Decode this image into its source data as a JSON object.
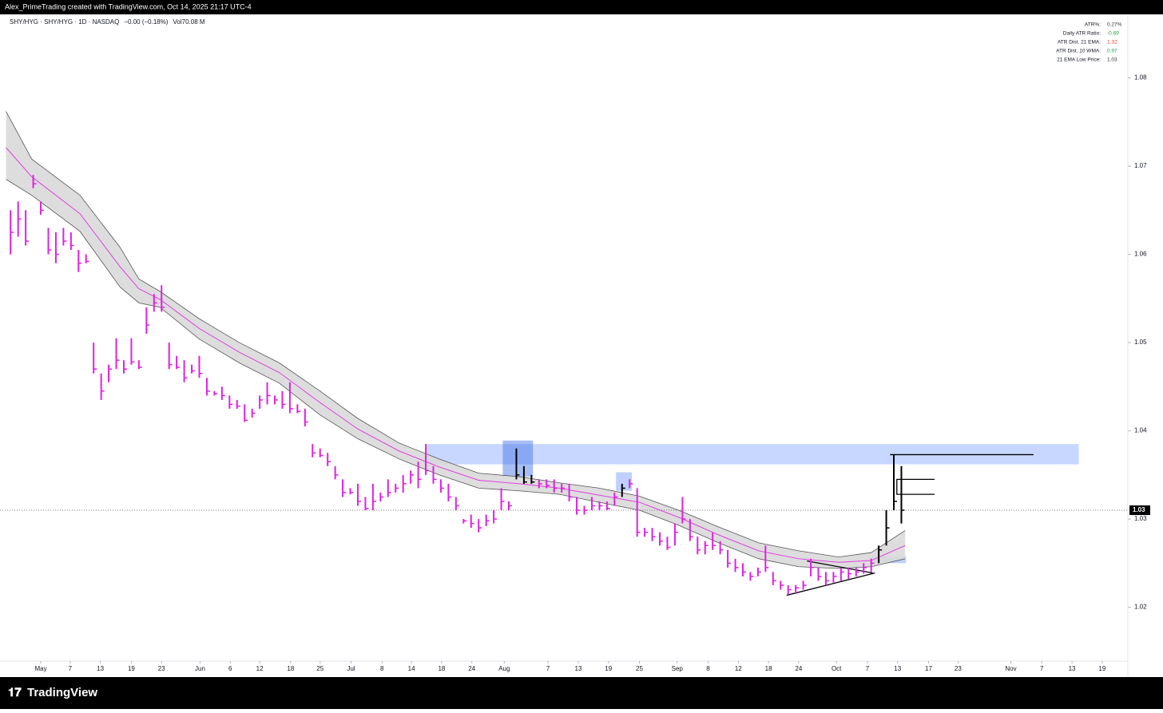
{
  "header": {
    "credit": "Alex_PrimeTrading created with TradingView.com, Oct 14, 2025 21:17 UTC-4"
  },
  "footer": {
    "logo": "TradingView"
  },
  "chart_data": {
    "type": "ohlc",
    "symbol": "SHY/HYG · SHY/HYG · 1D · NASDAQ",
    "change": "−0.00 (−0.18%)",
    "volume_label": "Vol",
    "volume": "70.08 M",
    "xlim": [
      -5.4,
      144
    ],
    "ylim": [
      1.0139,
      1.0872
    ],
    "yticks": [
      1.02,
      1.03,
      1.04,
      1.05,
      1.06,
      1.07,
      1.08
    ],
    "xticks": [
      {
        "value": 0,
        "label": "May"
      },
      {
        "value": 3.9,
        "label": "7"
      },
      {
        "value": 7.9,
        "label": "13"
      },
      {
        "value": 12,
        "label": "19"
      },
      {
        "value": 16,
        "label": "23"
      },
      {
        "value": 21.1,
        "label": "Jun"
      },
      {
        "value": 25.1,
        "label": "6"
      },
      {
        "value": 29,
        "label": "12"
      },
      {
        "value": 33.1,
        "label": "18"
      },
      {
        "value": 37,
        "label": "25"
      },
      {
        "value": 41.1,
        "label": "Jul"
      },
      {
        "value": 45.2,
        "label": "8"
      },
      {
        "value": 49.1,
        "label": "14"
      },
      {
        "value": 53.1,
        "label": "18"
      },
      {
        "value": 57.1,
        "label": "24"
      },
      {
        "value": 61.4,
        "label": "Aug"
      },
      {
        "value": 67.2,
        "label": "7"
      },
      {
        "value": 71.2,
        "label": "13"
      },
      {
        "value": 75.2,
        "label": "19"
      },
      {
        "value": 79.3,
        "label": "25"
      },
      {
        "value": 84.3,
        "label": "Sep"
      },
      {
        "value": 88.4,
        "label": "8"
      },
      {
        "value": 92.4,
        "label": "12"
      },
      {
        "value": 96.4,
        "label": "18"
      },
      {
        "value": 100.4,
        "label": "24"
      },
      {
        "value": 105.4,
        "label": "Oct"
      },
      {
        "value": 109.5,
        "label": "7"
      },
      {
        "value": 113.5,
        "label": "13"
      },
      {
        "value": 117.6,
        "label": "17"
      },
      {
        "value": 121.5,
        "label": "23"
      },
      {
        "value": 128.5,
        "label": "Nov"
      },
      {
        "value": 132.6,
        "label": "7"
      },
      {
        "value": 136.6,
        "label": "13"
      },
      {
        "value": 140.6,
        "label": "19"
      }
    ],
    "last_price": {
      "value": 1.031,
      "label": "1.03"
    },
    "series": [
      {
        "color": "#e11fe6",
        "x": [
          -4,
          -3,
          -2,
          -1,
          0,
          1,
          2,
          3,
          4,
          5,
          6,
          7,
          8,
          9,
          10,
          11,
          12,
          13,
          14,
          15,
          16,
          17,
          18,
          19,
          20,
          21,
          22,
          23,
          24,
          25,
          26,
          27,
          28,
          29,
          30,
          31,
          32,
          33,
          34,
          35,
          36,
          37,
          38,
          39,
          40,
          41,
          42,
          43,
          44,
          45,
          46,
          47,
          48,
          49,
          50,
          51,
          52,
          53,
          54,
          55,
          56,
          57,
          58,
          59,
          60,
          61,
          62,
          66,
          67,
          68,
          69,
          70,
          71,
          72,
          73,
          74,
          75,
          76,
          78,
          79,
          80,
          81,
          82,
          83,
          84,
          85,
          86,
          87,
          88,
          89,
          90,
          91,
          92,
          93,
          94,
          95,
          96,
          97,
          98,
          99,
          100,
          101,
          102,
          103,
          104,
          105,
          106,
          107,
          108,
          109,
          110
        ],
        "high": [
          1.065,
          1.066,
          1.065,
          1.069,
          1.066,
          1.063,
          1.0625,
          1.063,
          1.0625,
          1.0605,
          1.06,
          1.05,
          1.0465,
          1.0475,
          1.0505,
          1.048,
          1.0505,
          1.048,
          1.054,
          1.0555,
          1.0565,
          1.05,
          1.0485,
          1.048,
          1.0475,
          1.0485,
          1.046,
          1.0445,
          1.045,
          1.044,
          1.0435,
          1.043,
          1.0425,
          1.044,
          1.0455,
          1.044,
          1.0445,
          1.0455,
          1.043,
          1.0425,
          1.0385,
          1.038,
          1.0375,
          1.036,
          1.0345,
          1.0335,
          1.034,
          1.0325,
          1.034,
          1.033,
          1.0345,
          1.034,
          1.035,
          1.0355,
          1.0365,
          1.0385,
          1.036,
          1.0345,
          1.034,
          1.0325,
          1.03,
          1.0305,
          1.03,
          1.0305,
          1.031,
          1.0335,
          1.032,
          1.0345,
          1.0345,
          1.0345,
          1.034,
          1.034,
          1.0325,
          1.0315,
          1.0325,
          1.032,
          1.032,
          1.033,
          1.0345,
          1.0335,
          1.029,
          1.029,
          1.0285,
          1.028,
          1.0295,
          1.0325,
          1.03,
          1.028,
          1.0275,
          1.0285,
          1.0275,
          1.0265,
          1.0255,
          1.025,
          1.024,
          1.0245,
          1.027,
          1.024,
          1.023,
          1.0225,
          1.0225,
          1.023,
          1.0255,
          1.0245,
          1.024,
          1.024,
          1.0245,
          1.0245,
          1.0245,
          1.025,
          1.0255
        ],
        "low": [
          1.06,
          1.062,
          1.061,
          1.0675,
          1.0645,
          1.06,
          1.059,
          1.061,
          1.0605,
          1.058,
          1.059,
          1.0465,
          1.0435,
          1.0455,
          1.047,
          1.0465,
          1.0475,
          1.047,
          1.051,
          1.0535,
          1.0535,
          1.047,
          1.047,
          1.0455,
          1.0465,
          1.046,
          1.044,
          1.044,
          1.0435,
          1.0425,
          1.0425,
          1.041,
          1.0415,
          1.0425,
          1.043,
          1.043,
          1.0425,
          1.042,
          1.042,
          1.0405,
          1.037,
          1.037,
          1.036,
          1.0345,
          1.0325,
          1.0328,
          1.0315,
          1.031,
          1.031,
          1.032,
          1.0325,
          1.033,
          1.033,
          1.034,
          1.0335,
          1.035,
          1.034,
          1.033,
          1.032,
          1.031,
          1.0295,
          1.029,
          1.0285,
          1.0292,
          1.0295,
          1.031,
          1.031,
          1.0335,
          1.0335,
          1.033,
          1.033,
          1.032,
          1.0305,
          1.0305,
          1.031,
          1.031,
          1.031,
          1.0315,
          1.0335,
          1.028,
          1.028,
          1.0275,
          1.027,
          1.0265,
          1.027,
          1.0295,
          1.0275,
          1.026,
          1.026,
          1.0265,
          1.026,
          1.0245,
          1.024,
          1.0235,
          1.023,
          1.0235,
          1.024,
          1.0225,
          1.022,
          1.0215,
          1.0215,
          1.022,
          1.0235,
          1.023,
          1.0225,
          1.0228,
          1.023,
          1.0232,
          1.0235,
          1.0238,
          1.024
        ],
        "close": [
          1.0625,
          1.064,
          1.0615,
          1.068,
          1.065,
          1.0605,
          1.06,
          1.0615,
          1.061,
          1.059,
          1.0592,
          1.047,
          1.0445,
          1.047,
          1.048,
          1.047,
          1.0478,
          1.0472,
          1.052,
          1.0545,
          1.054,
          1.0475,
          1.0472,
          1.046,
          1.0468,
          1.0465,
          1.0445,
          1.0442,
          1.044,
          1.043,
          1.0428,
          1.0412,
          1.042,
          1.0435,
          1.044,
          1.0435,
          1.043,
          1.0425,
          1.0422,
          1.041,
          1.0375,
          1.0372,
          1.0365,
          1.035,
          1.033,
          1.033,
          1.032,
          1.0312,
          1.032,
          1.0325,
          1.033,
          1.0335,
          1.034,
          1.035,
          1.0345,
          1.0355,
          1.0345,
          1.0335,
          1.0325,
          1.0315,
          1.0298,
          1.0295,
          1.029,
          1.0298,
          1.03,
          1.032,
          1.0315,
          1.034,
          1.0338,
          1.0335,
          1.0335,
          1.0325,
          1.031,
          1.031,
          1.0315,
          1.0315,
          1.0312,
          1.0325,
          1.034,
          1.0285,
          1.0285,
          1.028,
          1.0275,
          1.0268,
          1.0285,
          1.03,
          1.028,
          1.0265,
          1.027,
          1.027,
          1.0265,
          1.025,
          1.0245,
          1.024,
          1.0235,
          1.024,
          1.0245,
          1.023,
          1.0225,
          1.022,
          1.0222,
          1.0225,
          1.0245,
          1.0235,
          1.023,
          1.0235,
          1.024,
          1.0238,
          1.024,
          1.0245,
          1.025
        ]
      },
      {
        "color": "#000000",
        "x": [
          63,
          64,
          65,
          77,
          111,
          112,
          113,
          114
        ],
        "high": [
          1.038,
          1.036,
          1.035,
          1.034,
          1.027,
          1.031,
          1.0373,
          1.036
        ],
        "low": [
          1.0345,
          1.034,
          1.034,
          1.0325,
          1.025,
          1.027,
          1.031,
          1.0295
        ],
        "close": [
          1.035,
          1.0342,
          1.0342,
          1.0335,
          1.0265,
          1.029,
          1.032,
          1.031
        ]
      }
    ],
    "band": {
      "fill": "#d9d9d9",
      "edge_color": "#555555",
      "mid_color": "#e040e0",
      "x": [
        -4.6,
        -1.2,
        5.2,
        10.5,
        13,
        15.8,
        21,
        26.3,
        31.6,
        37,
        42,
        47.5,
        52.8,
        58,
        63.4,
        68.7,
        74,
        79.3,
        84.5,
        89.8,
        95.1,
        100.4,
        105.7,
        110,
        114.5
      ],
      "upper": [
        1.0762,
        1.0708,
        1.0667,
        1.0608,
        1.0572,
        1.0558,
        1.0527,
        1.05,
        1.0477,
        1.0445,
        1.0414,
        1.0386,
        1.0368,
        1.0352,
        1.0348,
        1.0341,
        1.0335,
        1.0326,
        1.031,
        1.0291,
        1.0273,
        1.0264,
        1.0257,
        1.0262,
        1.0287
      ],
      "mid": [
        1.0721,
        1.0688,
        1.0646,
        1.0586,
        1.0561,
        1.0549,
        1.0516,
        1.0489,
        1.0466,
        1.0432,
        1.0402,
        1.0377,
        1.0359,
        1.0344,
        1.034,
        1.0335,
        1.0327,
        1.0319,
        1.0302,
        1.0282,
        1.0264,
        1.0255,
        1.0251,
        1.0253,
        1.027
      ],
      "lower": [
        1.0685,
        1.0667,
        1.0626,
        1.0563,
        1.0545,
        1.054,
        1.0504,
        1.0477,
        1.0454,
        1.0418,
        1.0391,
        1.0368,
        1.035,
        1.0335,
        1.0332,
        1.0328,
        1.0319,
        1.031,
        1.0293,
        1.0273,
        1.0255,
        1.0246,
        1.0244,
        1.0246,
        1.0255
      ]
    },
    "zones": [
      {
        "x0": 51.1,
        "x1": 137.5,
        "y0": 1.0362,
        "y1": 1.0385,
        "color": "rgba(110,150,255,0.38)"
      },
      {
        "x0": 61.2,
        "x1": 65.2,
        "y0": 1.0348,
        "y1": 1.0389,
        "color": "rgba(60,110,230,0.45)"
      },
      {
        "x0": 76.2,
        "x1": 78.3,
        "y0": 1.0332,
        "y1": 1.0353,
        "color": "rgba(110,150,255,0.45)"
      },
      {
        "x0": 110,
        "x1": 114.6,
        "y0": 1.025,
        "y1": 1.0258,
        "color": "rgba(110,150,255,0.45)"
      }
    ],
    "lines": [
      {
        "x": [
          98.8,
          110.5
        ],
        "y": [
          1.02136,
          1.02389
        ],
        "color": "#000000"
      },
      {
        "x": [
          101.5,
          110.2
        ],
        "y": [
          1.02525,
          1.02389
        ],
        "color": "#000000"
      },
      {
        "x": [
          112.5,
          131.5
        ],
        "y": [
          1.0373,
          1.0373
        ],
        "color": "#000000"
      },
      {
        "x": [
          118.4,
          113.4,
          113.4,
          118.4
        ],
        "y": [
          1.0345,
          1.0345,
          1.0328,
          1.0328
        ],
        "color": "#000000"
      }
    ],
    "indicator_table": [
      {
        "label": "ATR%:",
        "value": "0.27%",
        "color": "#333333"
      },
      {
        "label": "Daily ATR Ratio:",
        "value": "-0.69",
        "color": "#22a04b"
      },
      {
        "label": "ATR Dist. 21 EMA:",
        "value": "1.32",
        "color": "#e0403a"
      },
      {
        "label": "ATR Dist. 10 WMA:",
        "value": "0.97",
        "color": "#22a04b"
      },
      {
        "label": "21 EMA Low Price:",
        "value": "1.03",
        "color": "#333333"
      }
    ]
  }
}
